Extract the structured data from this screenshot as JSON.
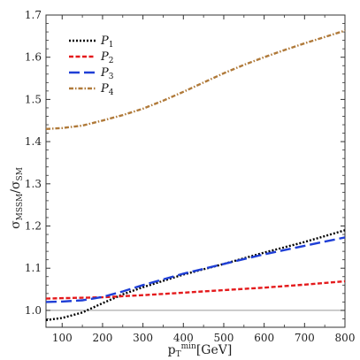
{
  "chart_data": {
    "type": "line",
    "title": "",
    "xlabel": {
      "base": "p",
      "sub": "T",
      "sup": "min",
      "unit": "[GeV]"
    },
    "ylabel": {
      "base": "σ",
      "sub1": "MSSM",
      "sep": "/σ",
      "sub2": "SM"
    },
    "xlim": [
      60,
      800
    ],
    "ylim": [
      0.96,
      1.7
    ],
    "xticks": [
      100,
      200,
      300,
      400,
      500,
      600,
      700,
      800
    ],
    "yticks": [
      1.0,
      1.1,
      1.2,
      1.3,
      1.4,
      1.5,
      1.6,
      1.7
    ],
    "ytick_labels": [
      "1.0",
      "1.1",
      "1.2",
      "1.3",
      "1.4",
      "1.5",
      "1.6",
      "1.7"
    ],
    "reference_line": {
      "y": 1.0,
      "color": "#999999"
    },
    "legend_placement": "top-left",
    "grid": false,
    "series": [
      {
        "name": "P",
        "sub": "1",
        "color": "#000000",
        "dash": "dotted",
        "x": [
          60,
          100,
          150,
          200,
          250,
          300,
          400,
          500,
          600,
          700,
          800
        ],
        "y": [
          0.977,
          0.982,
          0.995,
          1.017,
          1.038,
          1.055,
          1.085,
          1.11,
          1.137,
          1.162,
          1.19
        ]
      },
      {
        "name": "P",
        "sub": "2",
        "color": "#e41a1c",
        "dash": "dashed-short",
        "x": [
          60,
          100,
          200,
          300,
          400,
          500,
          600,
          700,
          800
        ],
        "y": [
          1.028,
          1.029,
          1.031,
          1.036,
          1.042,
          1.048,
          1.054,
          1.061,
          1.069
        ]
      },
      {
        "name": "P",
        "sub": "3",
        "color": "#1f3fd6",
        "dash": "dashed-long",
        "x": [
          60,
          100,
          150,
          200,
          250,
          300,
          400,
          500,
          600,
          700,
          800
        ],
        "y": [
          1.02,
          1.021,
          1.024,
          1.032,
          1.045,
          1.06,
          1.087,
          1.11,
          1.133,
          1.153,
          1.173
        ]
      },
      {
        "name": "P",
        "sub": "4",
        "color": "#b07a3a",
        "dash": "dash-dot",
        "x": [
          60,
          100,
          150,
          200,
          250,
          300,
          350,
          400,
          450,
          500,
          550,
          600,
          650,
          700,
          750,
          800
        ],
        "y": [
          1.43,
          1.432,
          1.438,
          1.45,
          1.463,
          1.478,
          1.497,
          1.518,
          1.54,
          1.562,
          1.582,
          1.6,
          1.617,
          1.633,
          1.648,
          1.663
        ]
      }
    ]
  }
}
